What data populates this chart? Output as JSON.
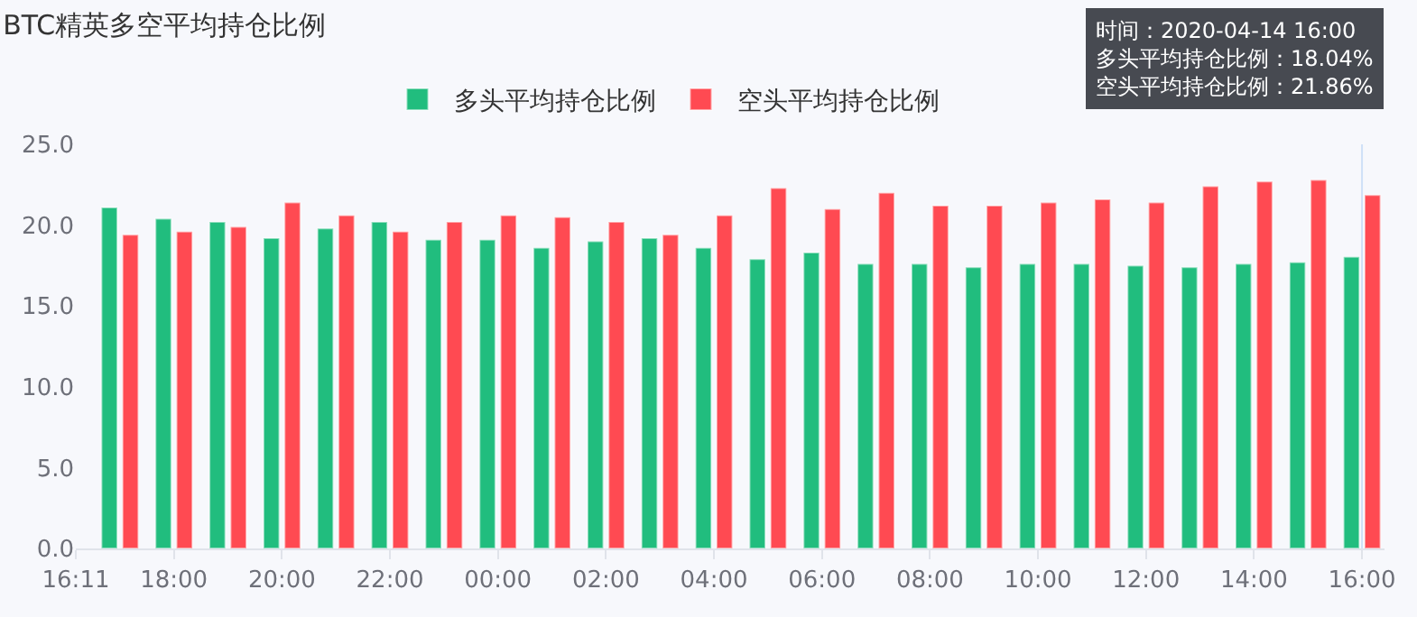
{
  "chart_data": {
    "type": "bar",
    "title": "BTC精英多空平均持仓比例",
    "x": [
      "2020-04-13T17:00",
      "2020-04-13T18:00",
      "2020-04-13T19:00",
      "2020-04-13T20:00",
      "2020-04-13T21:00",
      "2020-04-13T22:00",
      "2020-04-13T23:00",
      "2020-04-14T00:00",
      "2020-04-14T01:00",
      "2020-04-14T02:00",
      "2020-04-14T03:00",
      "2020-04-14T04:00",
      "2020-04-14T05:00",
      "2020-04-14T06:00",
      "2020-04-14T07:00",
      "2020-04-14T08:00",
      "2020-04-14T09:00",
      "2020-04-14T10:00",
      "2020-04-14T11:00",
      "2020-04-14T12:00",
      "2020-04-14T13:00",
      "2020-04-14T14:00",
      "2020-04-14T15:00",
      "2020-04-14T16:00"
    ],
    "series": [
      {
        "name": "多头平均持仓比例",
        "color": "#21bd7e",
        "values": [
          21.1,
          20.4,
          20.2,
          19.2,
          19.8,
          20.2,
          19.1,
          19.1,
          18.6,
          19.0,
          19.2,
          18.6,
          17.9,
          18.3,
          17.6,
          17.6,
          17.4,
          17.6,
          17.6,
          17.5,
          17.4,
          17.6,
          17.7,
          18.04
        ]
      },
      {
        "name": "空头平均持仓比例",
        "color": "#ff4a52",
        "values": [
          19.4,
          19.6,
          19.9,
          21.4,
          20.6,
          19.6,
          20.2,
          20.6,
          20.5,
          20.2,
          19.4,
          20.6,
          22.3,
          21.0,
          22.0,
          21.2,
          21.2,
          21.4,
          21.6,
          21.4,
          22.4,
          22.7,
          22.8,
          21.86
        ]
      }
    ],
    "ylim": [
      0,
      25
    ],
    "yticks": [
      {
        "value": 0,
        "label": "0.0"
      },
      {
        "value": 5,
        "label": "5.0"
      },
      {
        "value": 10,
        "label": "10.0"
      },
      {
        "value": 15,
        "label": "15.0"
      },
      {
        "value": 20,
        "label": "20.0"
      },
      {
        "value": 25,
        "label": "25.0"
      }
    ],
    "xlim": [
      "2020-04-13T16:11",
      "2020-04-14T16:25"
    ],
    "xticks": [
      {
        "value": "2020-04-13T16:11",
        "label": "16:11"
      },
      {
        "value": "2020-04-13T18:00",
        "label": "18:00"
      },
      {
        "value": "2020-04-13T20:00",
        "label": "20:00"
      },
      {
        "value": "2020-04-13T22:00",
        "label": "22:00"
      },
      {
        "value": "2020-04-14T00:00",
        "label": "00:00"
      },
      {
        "value": "2020-04-14T02:00",
        "label": "02:00"
      },
      {
        "value": "2020-04-14T04:00",
        "label": "04:00"
      },
      {
        "value": "2020-04-14T06:00",
        "label": "06:00"
      },
      {
        "value": "2020-04-14T08:00",
        "label": "08:00"
      },
      {
        "value": "2020-04-14T10:00",
        "label": "10:00"
      },
      {
        "value": "2020-04-14T12:00",
        "label": "12:00"
      },
      {
        "value": "2020-04-14T14:00",
        "label": "14:00"
      },
      {
        "value": "2020-04-14T16:00",
        "label": "16:00"
      }
    ],
    "ref_lines": [
      {
        "axis": "x",
        "value": "2020-04-14T16:00",
        "color": "#cfe0f7"
      }
    ],
    "annotations": [
      "时间：2020-04-14 16:00\n多头平均持仓比例：18.04%\n空头平均持仓比例：21.86%"
    ],
    "grid": false,
    "legend": "top"
  }
}
